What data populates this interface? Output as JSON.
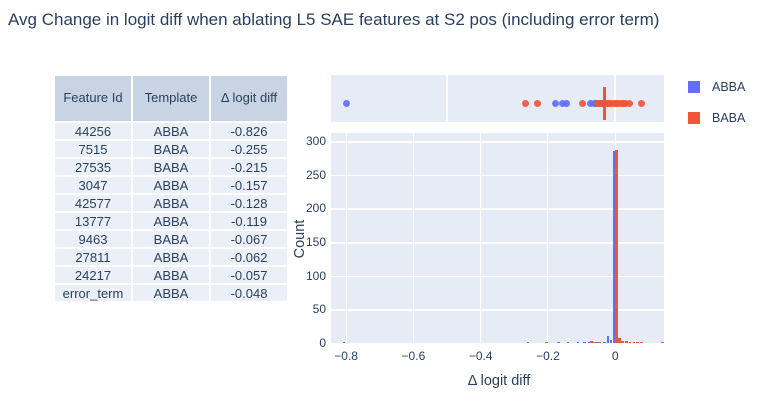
{
  "title": "Avg Change in logit diff when ablating L5 SAE features at S2 pos (including error term)",
  "colors": {
    "abba": "#636EFA",
    "baba": "#EF553B",
    "panel_bg": "#E5ECF6",
    "table_header_bg": "#C8D4E3",
    "table_cell_bg": "#EBF0F8",
    "text": "#2A3F5F",
    "grid": "#FFFFFF"
  },
  "table": {
    "headers": [
      "Feature Id",
      "Template",
      "Δ logit diff"
    ],
    "rows": [
      [
        "44256",
        "ABBA",
        "-0.826"
      ],
      [
        "7515",
        "BABA",
        "-0.255"
      ],
      [
        "27535",
        "BABA",
        "-0.215"
      ],
      [
        "3047",
        "ABBA",
        "-0.157"
      ],
      [
        "42577",
        "ABBA",
        "-0.128"
      ],
      [
        "13777",
        "ABBA",
        "-0.119"
      ],
      [
        "9463",
        "BABA",
        "-0.067"
      ],
      [
        "27811",
        "ABBA",
        "-0.062"
      ],
      [
        "24217",
        "ABBA",
        "-0.057"
      ],
      [
        "error_term",
        "ABBA",
        "-0.048"
      ]
    ]
  },
  "legend": {
    "items": [
      {
        "label": "ABBA",
        "color": "#636EFA"
      },
      {
        "label": "BABA",
        "color": "#EF553B"
      }
    ]
  },
  "chart_data": {
    "type": "histogram",
    "title": "Avg Change in logit diff when ablating L5 SAE features at S2 pos (including error term)",
    "xlabel": "Δ logit diff",
    "ylabel": "Count",
    "xlim": [
      -0.845,
      0.145
    ],
    "ylim": [
      0,
      312
    ],
    "grid": true,
    "legend_position": "top-right",
    "x_ticks": [
      {
        "v": -0.8,
        "label": "−0.8"
      },
      {
        "v": -0.6,
        "label": "−0.6"
      },
      {
        "v": -0.4,
        "label": "−0.4"
      },
      {
        "v": -0.2,
        "label": "−0.2"
      },
      {
        "v": 0,
        "label": "0"
      }
    ],
    "y_ticks": [
      {
        "v": 0,
        "label": "0"
      },
      {
        "v": 50,
        "label": "50"
      },
      {
        "v": 100,
        "label": "100"
      },
      {
        "v": 150,
        "label": "150"
      },
      {
        "v": 200,
        "label": "200"
      },
      {
        "v": 250,
        "label": "250"
      },
      {
        "v": 300,
        "label": "300"
      }
    ],
    "series": [
      {
        "name": "ABBA",
        "color": "#636EFA",
        "bars": [
          {
            "x": -0.806,
            "count": 2
          },
          {
            "x": -0.168,
            "count": 1
          },
          {
            "x": -0.141,
            "count": 2
          },
          {
            "x": -0.11,
            "count": 1
          },
          {
            "x": -0.092,
            "count": 1
          },
          {
            "x": -0.077,
            "count": 1
          },
          {
            "x": -0.053,
            "count": 2
          },
          {
            "x": -0.032,
            "count": 2
          },
          {
            "x": -0.022,
            "count": 10
          },
          {
            "x": -0.013,
            "count": 5
          },
          {
            "x": -0.003,
            "count": 285
          }
        ]
      },
      {
        "name": "BABA",
        "color": "#EF553B",
        "bars": [
          {
            "x": -0.26,
            "count": 1
          },
          {
            "x": -0.205,
            "count": 1
          },
          {
            "x": -0.071,
            "count": 3
          },
          {
            "x": -0.062,
            "count": 2
          },
          {
            "x": -0.046,
            "count": 2
          },
          {
            "x": 0.004,
            "count": 287
          },
          {
            "x": 0.012,
            "count": 7
          },
          {
            "x": 0.022,
            "count": 3
          },
          {
            "x": 0.033,
            "count": 3
          },
          {
            "x": 0.044,
            "count": 2
          },
          {
            "x": 0.056,
            "count": 2
          },
          {
            "x": 0.066,
            "count": 2
          },
          {
            "x": 0.078,
            "count": 2
          },
          {
            "x": 0.141,
            "count": 1
          }
        ]
      }
    ],
    "marginal_strip": {
      "gridlines_x": [
        -0.5,
        0
      ],
      "abba_points": [
        -0.8,
        -0.178,
        -0.158,
        -0.144,
        -0.073,
        -0.062,
        -0.055,
        -0.048,
        -0.042,
        -0.036,
        -0.03
      ],
      "baba_points": [
        -0.266,
        -0.232,
        -0.096,
        -0.052,
        -0.045,
        -0.038,
        -0.031,
        -0.024,
        -0.017,
        -0.01,
        -0.003,
        0.004,
        0.011,
        0.018,
        0.025,
        0.032,
        0.042,
        0.077
      ],
      "baba_median_x": -0.031
    }
  }
}
